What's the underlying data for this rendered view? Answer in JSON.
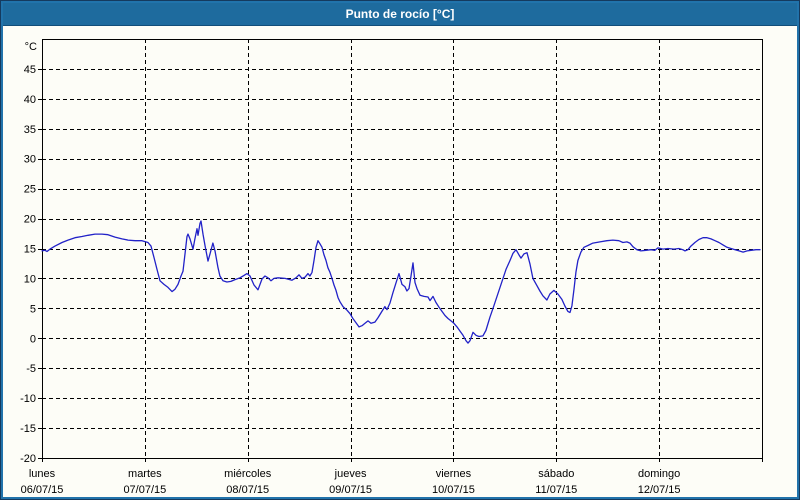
{
  "window": {
    "title": "Punto de rocío [°C]"
  },
  "colors": {
    "titlebar_bg": "#1e6b9e",
    "titlebar_text": "#ffffff",
    "border": "#2173ab",
    "plot_bg": "#fdfdf7",
    "grid": "#000000",
    "line": "#2222c8"
  },
  "chart_data": {
    "type": "line",
    "title": "Punto de rocío [°C]",
    "ylabel": "°C",
    "xlabel": "",
    "ylim": [
      -20,
      50
    ],
    "grid": "dashed",
    "legend": "none",
    "y_ticks": [
      45,
      40,
      35,
      30,
      25,
      20,
      15,
      10,
      5,
      0,
      -5,
      -10,
      -15,
      -20
    ],
    "x_days": [
      {
        "name": "lunes",
        "date": "06/07/15"
      },
      {
        "name": "martes",
        "date": "07/07/15"
      },
      {
        "name": "miércoles",
        "date": "08/07/15"
      },
      {
        "name": "jueves",
        "date": "09/07/15"
      },
      {
        "name": "viernes",
        "date": "10/07/15"
      },
      {
        "name": "sábado",
        "date": "11/07/15"
      },
      {
        "name": "domingo",
        "date": "12/07/15"
      }
    ],
    "series": [
      {
        "name": "Punto de rocío",
        "color": "#2222c8",
        "x_unit": "days from 06/07/15 00:00",
        "points": [
          [
            0,
            14.6
          ],
          [
            0.029,
            14.7
          ],
          [
            0.049,
            14.5
          ],
          [
            0.078,
            14.9
          ],
          [
            0.126,
            15.4
          ],
          [
            0.194,
            16
          ],
          [
            0.253,
            16.4
          ],
          [
            0.321,
            16.8
          ],
          [
            0.389,
            17
          ],
          [
            0.447,
            17.2
          ],
          [
            0.515,
            17.4
          ],
          [
            0.583,
            17.4
          ],
          [
            0.642,
            17.3
          ],
          [
            0.71,
            16.9
          ],
          [
            0.778,
            16.6
          ],
          [
            0.836,
            16.4
          ],
          [
            0.904,
            16.3
          ],
          [
            0.972,
            16.3
          ],
          [
            1.031,
            16
          ],
          [
            1.06,
            15.4
          ],
          [
            1.089,
            13.5
          ],
          [
            1.118,
            11.5
          ],
          [
            1.147,
            9.6
          ],
          [
            1.186,
            9
          ],
          [
            1.225,
            8.5
          ],
          [
            1.264,
            7.8
          ],
          [
            1.293,
            8.2
          ],
          [
            1.322,
            9
          ],
          [
            1.351,
            10.4
          ],
          [
            1.371,
            11.2
          ],
          [
            1.39,
            14.1
          ],
          [
            1.41,
            17
          ],
          [
            1.419,
            17.4
          ],
          [
            1.439,
            16.6
          ],
          [
            1.468,
            14.9
          ],
          [
            1.487,
            16.6
          ],
          [
            1.507,
            18.3
          ],
          [
            1.517,
            17.2
          ],
          [
            1.536,
            19.2
          ],
          [
            1.546,
            19.6
          ],
          [
            1.565,
            17.4
          ],
          [
            1.585,
            15.5
          ],
          [
            1.614,
            12.9
          ],
          [
            1.633,
            14.1
          ],
          [
            1.662,
            15.9
          ],
          [
            1.682,
            14.6
          ],
          [
            1.711,
            11.8
          ],
          [
            1.73,
            10.4
          ],
          [
            1.76,
            9.6
          ],
          [
            1.798,
            9.4
          ],
          [
            1.837,
            9.5
          ],
          [
            1.876,
            9.8
          ],
          [
            1.925,
            10.1
          ],
          [
            1.964,
            10.5
          ],
          [
            1.993,
            10.8
          ],
          [
            2.022,
            10.4
          ],
          [
            2.061,
            8.9
          ],
          [
            2.1,
            8.1
          ],
          [
            2.139,
            9.9
          ],
          [
            2.168,
            10.4
          ],
          [
            2.197,
            10.1
          ],
          [
            2.226,
            9.6
          ],
          [
            2.256,
            10
          ],
          [
            2.295,
            10.1
          ],
          [
            2.363,
            10
          ],
          [
            2.431,
            9.7
          ],
          [
            2.469,
            10.1
          ],
          [
            2.499,
            10.6
          ],
          [
            2.528,
            10
          ],
          [
            2.557,
            10.2
          ],
          [
            2.586,
            10.8
          ],
          [
            2.605,
            10.4
          ],
          [
            2.625,
            11
          ],
          [
            2.644,
            13
          ],
          [
            2.664,
            15.2
          ],
          [
            2.683,
            16.3
          ],
          [
            2.702,
            15.8
          ],
          [
            2.722,
            15.2
          ],
          [
            2.741,
            14
          ],
          [
            2.761,
            13
          ],
          [
            2.78,
            11.8
          ],
          [
            2.8,
            11
          ],
          [
            2.819,
            10
          ],
          [
            2.839,
            8.9
          ],
          [
            2.858,
            8
          ],
          [
            2.878,
            6.8
          ],
          [
            2.897,
            6.1
          ],
          [
            2.926,
            5.3
          ],
          [
            2.965,
            4.7
          ],
          [
            2.994,
            4.1
          ],
          [
            3.023,
            3.3
          ],
          [
            3.053,
            2.6
          ],
          [
            3.082,
            1.9
          ],
          [
            3.111,
            2.1
          ],
          [
            3.14,
            2.5
          ],
          [
            3.169,
            2.9
          ],
          [
            3.199,
            2.5
          ],
          [
            3.237,
            2.7
          ],
          [
            3.266,
            3.4
          ],
          [
            3.305,
            4.5
          ],
          [
            3.334,
            5.3
          ],
          [
            3.354,
            4.8
          ],
          [
            3.383,
            5.9
          ],
          [
            3.412,
            7.6
          ],
          [
            3.441,
            9.2
          ],
          [
            3.471,
            10.8
          ],
          [
            3.5,
            9
          ],
          [
            3.529,
            8.6
          ],
          [
            3.548,
            7.9
          ],
          [
            3.568,
            8.3
          ],
          [
            3.587,
            10.3
          ],
          [
            3.607,
            12.6
          ],
          [
            3.626,
            9.3
          ],
          [
            3.646,
            8.3
          ],
          [
            3.675,
            7.2
          ],
          [
            3.714,
            7
          ],
          [
            3.753,
            6.9
          ],
          [
            3.772,
            6.3
          ],
          [
            3.801,
            7
          ],
          [
            3.83,
            6
          ],
          [
            3.86,
            5.2
          ],
          [
            3.889,
            4.5
          ],
          [
            3.918,
            3.8
          ],
          [
            3.947,
            3.3
          ],
          [
            3.976,
            2.9
          ],
          [
            4.005,
            2.5
          ],
          [
            4.035,
            1.9
          ],
          [
            4.064,
            1.2
          ],
          [
            4.093,
            0.5
          ],
          [
            4.122,
            -0.4
          ],
          [
            4.142,
            -0.8
          ],
          [
            4.161,
            -0.4
          ],
          [
            4.19,
            1
          ],
          [
            4.219,
            0.5
          ],
          [
            4.248,
            0.3
          ],
          [
            4.287,
            0.4
          ],
          [
            4.316,
            1.3
          ],
          [
            4.355,
            3.5
          ],
          [
            4.394,
            5.5
          ],
          [
            4.433,
            7.5
          ],
          [
            4.472,
            9.5
          ],
          [
            4.511,
            11.5
          ],
          [
            4.55,
            13
          ],
          [
            4.579,
            14.2
          ],
          [
            4.608,
            14.8
          ],
          [
            4.638,
            13.9
          ],
          [
            4.657,
            13.4
          ],
          [
            4.686,
            14.1
          ],
          [
            4.715,
            14.3
          ],
          [
            4.744,
            12.4
          ],
          [
            4.773,
            10
          ],
          [
            4.812,
            8.8
          ],
          [
            4.841,
            7.9
          ],
          [
            4.87,
            7.1
          ],
          [
            4.909,
            6.4
          ],
          [
            4.938,
            7.4
          ],
          [
            4.977,
            8
          ],
          [
            5.016,
            7.4
          ],
          [
            5.055,
            6.5
          ],
          [
            5.084,
            5.4
          ],
          [
            5.113,
            4.5
          ],
          [
            5.133,
            4.3
          ],
          [
            5.152,
            5.4
          ],
          [
            5.172,
            8.2
          ],
          [
            5.191,
            11
          ],
          [
            5.21,
            13
          ],
          [
            5.239,
            14.4
          ],
          [
            5.268,
            15.2
          ],
          [
            5.307,
            15.5
          ],
          [
            5.356,
            15.9
          ],
          [
            5.424,
            16.1
          ],
          [
            5.492,
            16.3
          ],
          [
            5.55,
            16.4
          ],
          [
            5.609,
            16.3
          ],
          [
            5.648,
            16
          ],
          [
            5.687,
            16.1
          ],
          [
            5.716,
            15.9
          ],
          [
            5.745,
            15.3
          ],
          [
            5.784,
            14.8
          ],
          [
            5.823,
            14.6
          ],
          [
            5.871,
            14.7
          ],
          [
            5.92,
            14.8
          ],
          [
            5.959,
            14.7
          ],
          [
            5.988,
            15.1
          ],
          [
            6.037,
            14.9
          ],
          [
            6.085,
            15
          ],
          [
            6.144,
            14.9
          ],
          [
            6.192,
            15
          ],
          [
            6.231,
            14.8
          ],
          [
            6.251,
            14.6
          ],
          [
            6.28,
            14.8
          ],
          [
            6.309,
            15.4
          ],
          [
            6.348,
            16
          ],
          [
            6.387,
            16.5
          ],
          [
            6.426,
            16.8
          ],
          [
            6.465,
            16.8
          ],
          [
            6.504,
            16.6
          ],
          [
            6.543,
            16.3
          ],
          [
            6.582,
            16
          ],
          [
            6.621,
            15.6
          ],
          [
            6.66,
            15.2
          ],
          [
            6.699,
            15
          ],
          [
            6.738,
            14.8
          ],
          [
            6.777,
            14.6
          ],
          [
            6.816,
            14.4
          ],
          [
            6.855,
            14.6
          ],
          [
            6.894,
            14.7
          ],
          [
            6.942,
            14.8
          ],
          [
            6.981,
            14.8
          ]
        ]
      }
    ]
  }
}
